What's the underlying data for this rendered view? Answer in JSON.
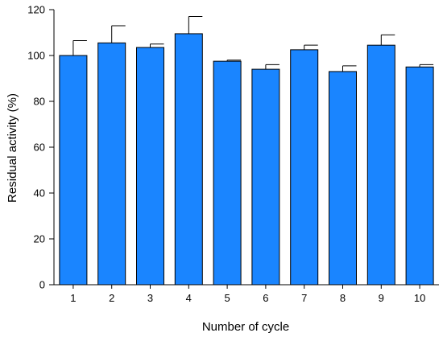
{
  "chart_data": {
    "type": "bar",
    "title": "",
    "xlabel": "Number of cycle",
    "ylabel": "Residual activity (%)",
    "categories": [
      "1",
      "2",
      "3",
      "4",
      "5",
      "6",
      "7",
      "8",
      "9",
      "10"
    ],
    "values": [
      100,
      105.5,
      103.5,
      109.5,
      97.5,
      94,
      102.5,
      93,
      104.5,
      95
    ],
    "errors": [
      6.5,
      7.5,
      1.5,
      7.5,
      0.5,
      2,
      2,
      2.5,
      4.5,
      1
    ],
    "ylim": [
      0,
      120
    ],
    "yticks": [
      0,
      20,
      40,
      60,
      80,
      100,
      120
    ],
    "grid": false,
    "bar_color": "#1a85ff",
    "edge_color": "#000000"
  }
}
